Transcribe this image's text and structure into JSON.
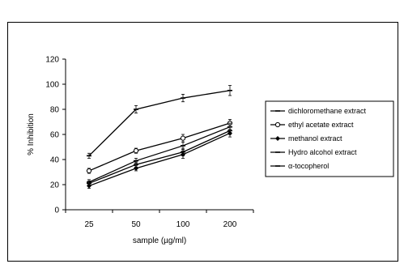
{
  "chart_data": {
    "type": "line",
    "title": "",
    "xlabel": "sample (µg/ml)",
    "ylabel": "% Inhibition",
    "categories": [
      "25",
      "50",
      "100",
      "200"
    ],
    "ylim": [
      0,
      120
    ],
    "yticks": [
      0,
      20,
      40,
      60,
      80,
      100,
      120
    ],
    "grid": false,
    "legend_position": "right",
    "error_bars": true,
    "series": [
      {
        "name": "dichloromethane extract",
        "values": [
          21,
          36,
          46,
          63
        ],
        "marker": "dash",
        "errors": [
          2,
          2,
          3,
          3
        ]
      },
      {
        "name": "ethyl acetate extract",
        "values": [
          31,
          47,
          57,
          69
        ],
        "marker": "circle",
        "errors": [
          2,
          2,
          3,
          3
        ]
      },
      {
        "name": "methanol extract",
        "values": [
          19,
          33,
          44,
          61
        ],
        "marker": "diamond",
        "errors": [
          2,
          2,
          3,
          3
        ]
      },
      {
        "name": "Hydro alcohol extract",
        "values": [
          22,
          39,
          51,
          66
        ],
        "marker": "dash",
        "errors": [
          2,
          2,
          3,
          3
        ]
      },
      {
        "name": "α-tocopherol",
        "values": [
          43,
          80,
          89,
          95
        ],
        "marker": "dash",
        "errors": [
          2,
          3,
          3,
          4
        ]
      }
    ]
  }
}
